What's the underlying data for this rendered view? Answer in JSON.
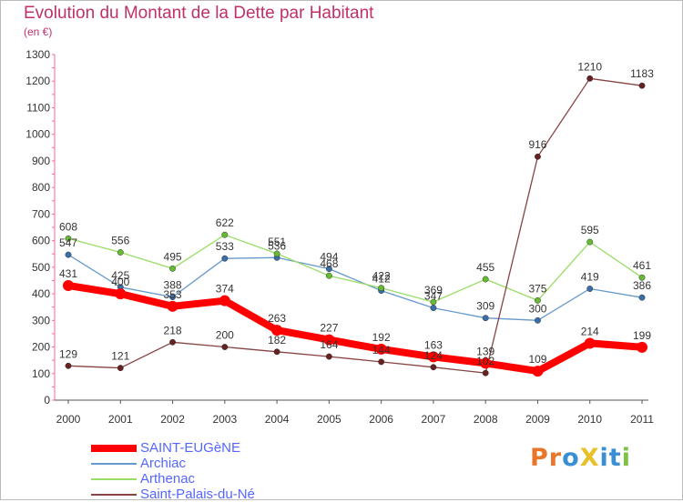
{
  "header": {
    "title": "Evolution du Montant de la Dette par Habitant",
    "subtitle": "(en €)"
  },
  "logo": {
    "text": "ProXiti",
    "letters": [
      {
        "ch": "P",
        "color": "#e8762b"
      },
      {
        "ch": "r",
        "color": "#e8762b"
      },
      {
        "ch": "o",
        "color": "#3a8fd4"
      },
      {
        "ch": "X",
        "color": "#e8c02b"
      },
      {
        "ch": "i",
        "color": "#3a8fd4"
      },
      {
        "ch": "t",
        "color": "#3a8fd4"
      },
      {
        "ch": "i",
        "color": "#7cc243"
      }
    ]
  },
  "chart_data": {
    "type": "line",
    "title": "Evolution du Montant de la Dette par Habitant",
    "subtitle": "(en €)",
    "xlabel": "",
    "ylabel": "",
    "x": [
      "2000",
      "2001",
      "2002",
      "2003",
      "2004",
      "2005",
      "2006",
      "2007",
      "2008",
      "2009",
      "2010",
      "2011"
    ],
    "ylim": [
      0,
      1300
    ],
    "yticks": [
      0,
      100,
      200,
      300,
      400,
      500,
      600,
      700,
      800,
      900,
      1000,
      1100,
      1200,
      1300
    ],
    "grid": false,
    "legend_position": "bottom-left",
    "series": [
      {
        "name": "SAINT-EUGèNE",
        "color": "#ff0000",
        "marker_color": "#ff0000",
        "thick": true,
        "values": [
          431,
          400,
          353,
          374,
          263,
          227,
          192,
          163,
          139,
          109,
          214,
          199
        ],
        "labels": [
          "431",
          "400",
          "353",
          "374",
          "263",
          "227",
          "192",
          "163",
          "139",
          "109",
          "214",
          "199"
        ]
      },
      {
        "name": "Archiac",
        "color": "#6699cc",
        "marker_color": "#3a6ea8",
        "thick": false,
        "values": [
          547,
          425,
          388,
          533,
          536,
          494,
          412,
          347,
          309,
          300,
          419,
          386
        ],
        "labels": [
          "547",
          "425",
          "388",
          "533",
          "536",
          "494",
          "412",
          "347",
          "309",
          "300",
          "419",
          "386"
        ]
      },
      {
        "name": "Arthenac",
        "color": "#99dd66",
        "marker_color": "#66bb33",
        "thick": false,
        "values": [
          608,
          556,
          495,
          622,
          551,
          468,
          422,
          369,
          455,
          375,
          595,
          461
        ],
        "labels": [
          "608",
          "556",
          "495",
          "622",
          "551",
          "468",
          "422",
          "369",
          "455",
          "375",
          "595",
          "461"
        ]
      },
      {
        "name": "Saint-Palais-du-Né",
        "color": "#884444",
        "marker_color": "#662222",
        "thick": false,
        "values": [
          129,
          121,
          218,
          200,
          182,
          164,
          144,
          124,
          102,
          916,
          1210,
          1183
        ],
        "labels": [
          "129",
          "121",
          "218",
          "200",
          "182",
          "164",
          "144",
          "124",
          "102",
          "916",
          "1210",
          "1183"
        ]
      }
    ]
  }
}
